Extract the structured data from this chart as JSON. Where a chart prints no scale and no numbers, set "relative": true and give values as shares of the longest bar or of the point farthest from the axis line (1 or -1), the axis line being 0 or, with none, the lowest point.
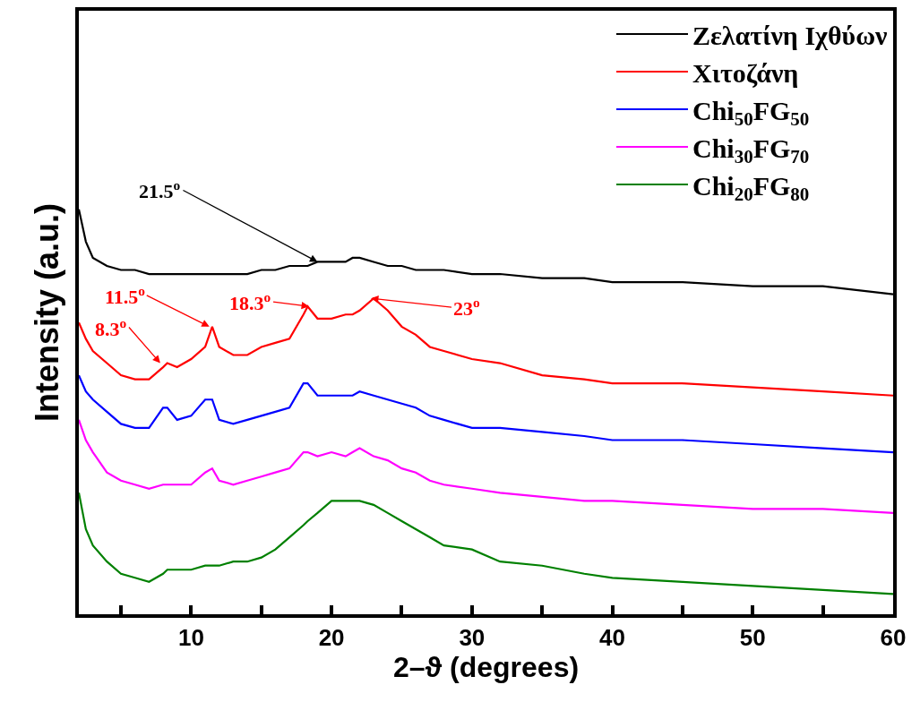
{
  "chart_data": {
    "type": "line",
    "relative": true,
    "xlabel": "2–ϑ (degrees)",
    "ylabel": "Intensity (a.u.)",
    "x": [
      2,
      2.5,
      3,
      4,
      5,
      6,
      7,
      8,
      8.3,
      9,
      10,
      11,
      11.5,
      12,
      13,
      14,
      15,
      16,
      17,
      18,
      18.3,
      19,
      20,
      21,
      21.5,
      22,
      23,
      24,
      25,
      26,
      27,
      28,
      30,
      32,
      35,
      38,
      40,
      45,
      50,
      55,
      60
    ],
    "xlim": [
      2,
      60
    ],
    "xticks": [
      {
        "value": 5,
        "label": null
      },
      10,
      {
        "value": 15,
        "label": null
      },
      20,
      {
        "value": 25,
        "label": null
      },
      30,
      {
        "value": 35,
        "label": null
      },
      40,
      {
        "value": 45,
        "label": null
      },
      50,
      {
        "value": 55,
        "label": null
      },
      60
    ],
    "legend": "top right",
    "marker": "none",
    "line_style": "solid",
    "series": [
      {
        "name": "Ζελατίνη Ιχθύων",
        "color": "#000000",
        "values": [
          1.0,
          0.92,
          0.88,
          0.86,
          0.85,
          0.85,
          0.84,
          0.84,
          0.84,
          0.84,
          0.84,
          0.84,
          0.84,
          0.84,
          0.84,
          0.84,
          0.85,
          0.85,
          0.86,
          0.86,
          0.86,
          0.87,
          0.87,
          0.87,
          0.88,
          0.88,
          0.87,
          0.86,
          0.86,
          0.85,
          0.85,
          0.85,
          0.84,
          0.84,
          0.83,
          0.83,
          0.82,
          0.82,
          0.81,
          0.81,
          0.79
        ]
      },
      {
        "name": "Χιτοζάνη",
        "color": "#ff0000",
        "values": [
          0.72,
          0.68,
          0.65,
          0.62,
          0.59,
          0.58,
          0.58,
          0.61,
          0.62,
          0.61,
          0.63,
          0.66,
          0.71,
          0.66,
          0.64,
          0.64,
          0.66,
          0.67,
          0.68,
          0.74,
          0.76,
          0.73,
          0.73,
          0.74,
          0.74,
          0.75,
          0.78,
          0.75,
          0.71,
          0.69,
          0.66,
          0.65,
          0.63,
          0.62,
          0.59,
          0.58,
          0.57,
          0.57,
          0.56,
          0.55,
          0.54
        ]
      },
      {
        "name": "Chi$_{50}$FG$_{50}$",
        "color": "#0000ff",
        "values": [
          0.59,
          0.55,
          0.53,
          0.5,
          0.47,
          0.46,
          0.46,
          0.51,
          0.51,
          0.48,
          0.49,
          0.53,
          0.53,
          0.48,
          0.47,
          0.48,
          0.49,
          0.5,
          0.51,
          0.57,
          0.57,
          0.54,
          0.54,
          0.54,
          0.54,
          0.55,
          0.54,
          0.53,
          0.52,
          0.51,
          0.49,
          0.48,
          0.46,
          0.46,
          0.45,
          0.44,
          0.43,
          0.43,
          0.42,
          0.41,
          0.4
        ]
      },
      {
        "name": "Chi$_{30}$FG$_{70}$",
        "color": "#ff00ff",
        "values": [
          0.48,
          0.43,
          0.4,
          0.35,
          0.33,
          0.32,
          0.31,
          0.32,
          0.32,
          0.32,
          0.32,
          0.35,
          0.36,
          0.33,
          0.32,
          0.33,
          0.34,
          0.35,
          0.36,
          0.4,
          0.4,
          0.39,
          0.4,
          0.39,
          0.4,
          0.41,
          0.39,
          0.38,
          0.36,
          0.35,
          0.33,
          0.32,
          0.31,
          0.3,
          0.29,
          0.28,
          0.28,
          0.27,
          0.26,
          0.26,
          0.25
        ]
      },
      {
        "name": "Chi$_{20}$FG$_{80}$",
        "color": "#008000",
        "values": [
          0.3,
          0.21,
          0.17,
          0.13,
          0.1,
          0.09,
          0.08,
          0.1,
          0.11,
          0.11,
          0.11,
          0.12,
          0.12,
          0.12,
          0.13,
          0.13,
          0.14,
          0.16,
          0.19,
          0.22,
          0.23,
          0.25,
          0.28,
          0.28,
          0.28,
          0.28,
          0.27,
          0.25,
          0.23,
          0.21,
          0.19,
          0.17,
          0.16,
          0.13,
          0.12,
          0.1,
          0.09,
          0.08,
          0.07,
          0.06,
          0.05
        ]
      }
    ],
    "annotations": [
      {
        "text": "21.5$^{o}$",
        "x": 19,
        "y": 0.87
      },
      {
        "text": "8.3$^{o}$",
        "x": 7.8,
        "y": 0.62
      },
      {
        "text": "11.5$^{o}$",
        "x": 11.3,
        "y": 0.71
      },
      {
        "text": "18.3$^{o}$",
        "x": 18.4,
        "y": 0.76
      },
      {
        "text": "23$^{o}$",
        "x": 22.8,
        "y": 0.78
      }
    ]
  }
}
